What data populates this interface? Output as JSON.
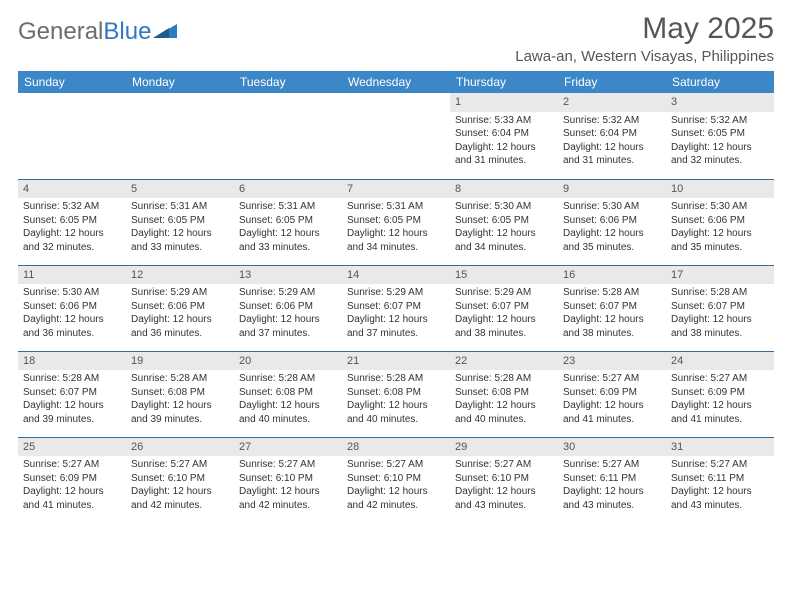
{
  "logo": {
    "text1": "General",
    "text2": "Blue"
  },
  "title": "May 2025",
  "location": "Lawa-an, Western Visayas, Philippines",
  "colors": {
    "header_bg": "#3c87c7",
    "header_text": "#ffffff",
    "daynum_bg": "#e9e9e9",
    "row_border": "#2f6da3",
    "body_text": "#333333",
    "title_text": "#565656",
    "logo_gray": "#6d6d6d",
    "logo_blue": "#2f79bd"
  },
  "typography": {
    "title_fontsize": 30,
    "location_fontsize": 15,
    "weekday_fontsize": 12,
    "cell_fontsize": 10
  },
  "weekdays": [
    "Sunday",
    "Monday",
    "Tuesday",
    "Wednesday",
    "Thursday",
    "Friday",
    "Saturday"
  ],
  "weeks": [
    [
      null,
      null,
      null,
      null,
      {
        "day": "1",
        "sunrise": "5:33 AM",
        "sunset": "6:04 PM",
        "daylight": "12 hours and 31 minutes."
      },
      {
        "day": "2",
        "sunrise": "5:32 AM",
        "sunset": "6:04 PM",
        "daylight": "12 hours and 31 minutes."
      },
      {
        "day": "3",
        "sunrise": "5:32 AM",
        "sunset": "6:05 PM",
        "daylight": "12 hours and 32 minutes."
      }
    ],
    [
      {
        "day": "4",
        "sunrise": "5:32 AM",
        "sunset": "6:05 PM",
        "daylight": "12 hours and 32 minutes."
      },
      {
        "day": "5",
        "sunrise": "5:31 AM",
        "sunset": "6:05 PM",
        "daylight": "12 hours and 33 minutes."
      },
      {
        "day": "6",
        "sunrise": "5:31 AM",
        "sunset": "6:05 PM",
        "daylight": "12 hours and 33 minutes."
      },
      {
        "day": "7",
        "sunrise": "5:31 AM",
        "sunset": "6:05 PM",
        "daylight": "12 hours and 34 minutes."
      },
      {
        "day": "8",
        "sunrise": "5:30 AM",
        "sunset": "6:05 PM",
        "daylight": "12 hours and 34 minutes."
      },
      {
        "day": "9",
        "sunrise": "5:30 AM",
        "sunset": "6:06 PM",
        "daylight": "12 hours and 35 minutes."
      },
      {
        "day": "10",
        "sunrise": "5:30 AM",
        "sunset": "6:06 PM",
        "daylight": "12 hours and 35 minutes."
      }
    ],
    [
      {
        "day": "11",
        "sunrise": "5:30 AM",
        "sunset": "6:06 PM",
        "daylight": "12 hours and 36 minutes."
      },
      {
        "day": "12",
        "sunrise": "5:29 AM",
        "sunset": "6:06 PM",
        "daylight": "12 hours and 36 minutes."
      },
      {
        "day": "13",
        "sunrise": "5:29 AM",
        "sunset": "6:06 PM",
        "daylight": "12 hours and 37 minutes."
      },
      {
        "day": "14",
        "sunrise": "5:29 AM",
        "sunset": "6:07 PM",
        "daylight": "12 hours and 37 minutes."
      },
      {
        "day": "15",
        "sunrise": "5:29 AM",
        "sunset": "6:07 PM",
        "daylight": "12 hours and 38 minutes."
      },
      {
        "day": "16",
        "sunrise": "5:28 AM",
        "sunset": "6:07 PM",
        "daylight": "12 hours and 38 minutes."
      },
      {
        "day": "17",
        "sunrise": "5:28 AM",
        "sunset": "6:07 PM",
        "daylight": "12 hours and 38 minutes."
      }
    ],
    [
      {
        "day": "18",
        "sunrise": "5:28 AM",
        "sunset": "6:07 PM",
        "daylight": "12 hours and 39 minutes."
      },
      {
        "day": "19",
        "sunrise": "5:28 AM",
        "sunset": "6:08 PM",
        "daylight": "12 hours and 39 minutes."
      },
      {
        "day": "20",
        "sunrise": "5:28 AM",
        "sunset": "6:08 PM",
        "daylight": "12 hours and 40 minutes."
      },
      {
        "day": "21",
        "sunrise": "5:28 AM",
        "sunset": "6:08 PM",
        "daylight": "12 hours and 40 minutes."
      },
      {
        "day": "22",
        "sunrise": "5:28 AM",
        "sunset": "6:08 PM",
        "daylight": "12 hours and 40 minutes."
      },
      {
        "day": "23",
        "sunrise": "5:27 AM",
        "sunset": "6:09 PM",
        "daylight": "12 hours and 41 minutes."
      },
      {
        "day": "24",
        "sunrise": "5:27 AM",
        "sunset": "6:09 PM",
        "daylight": "12 hours and 41 minutes."
      }
    ],
    [
      {
        "day": "25",
        "sunrise": "5:27 AM",
        "sunset": "6:09 PM",
        "daylight": "12 hours and 41 minutes."
      },
      {
        "day": "26",
        "sunrise": "5:27 AM",
        "sunset": "6:10 PM",
        "daylight": "12 hours and 42 minutes."
      },
      {
        "day": "27",
        "sunrise": "5:27 AM",
        "sunset": "6:10 PM",
        "daylight": "12 hours and 42 minutes."
      },
      {
        "day": "28",
        "sunrise": "5:27 AM",
        "sunset": "6:10 PM",
        "daylight": "12 hours and 42 minutes."
      },
      {
        "day": "29",
        "sunrise": "5:27 AM",
        "sunset": "6:10 PM",
        "daylight": "12 hours and 43 minutes."
      },
      {
        "day": "30",
        "sunrise": "5:27 AM",
        "sunset": "6:11 PM",
        "daylight": "12 hours and 43 minutes."
      },
      {
        "day": "31",
        "sunrise": "5:27 AM",
        "sunset": "6:11 PM",
        "daylight": "12 hours and 43 minutes."
      }
    ]
  ],
  "labels": {
    "sunrise": "Sunrise: ",
    "sunset": "Sunset: ",
    "daylight": "Daylight: "
  }
}
